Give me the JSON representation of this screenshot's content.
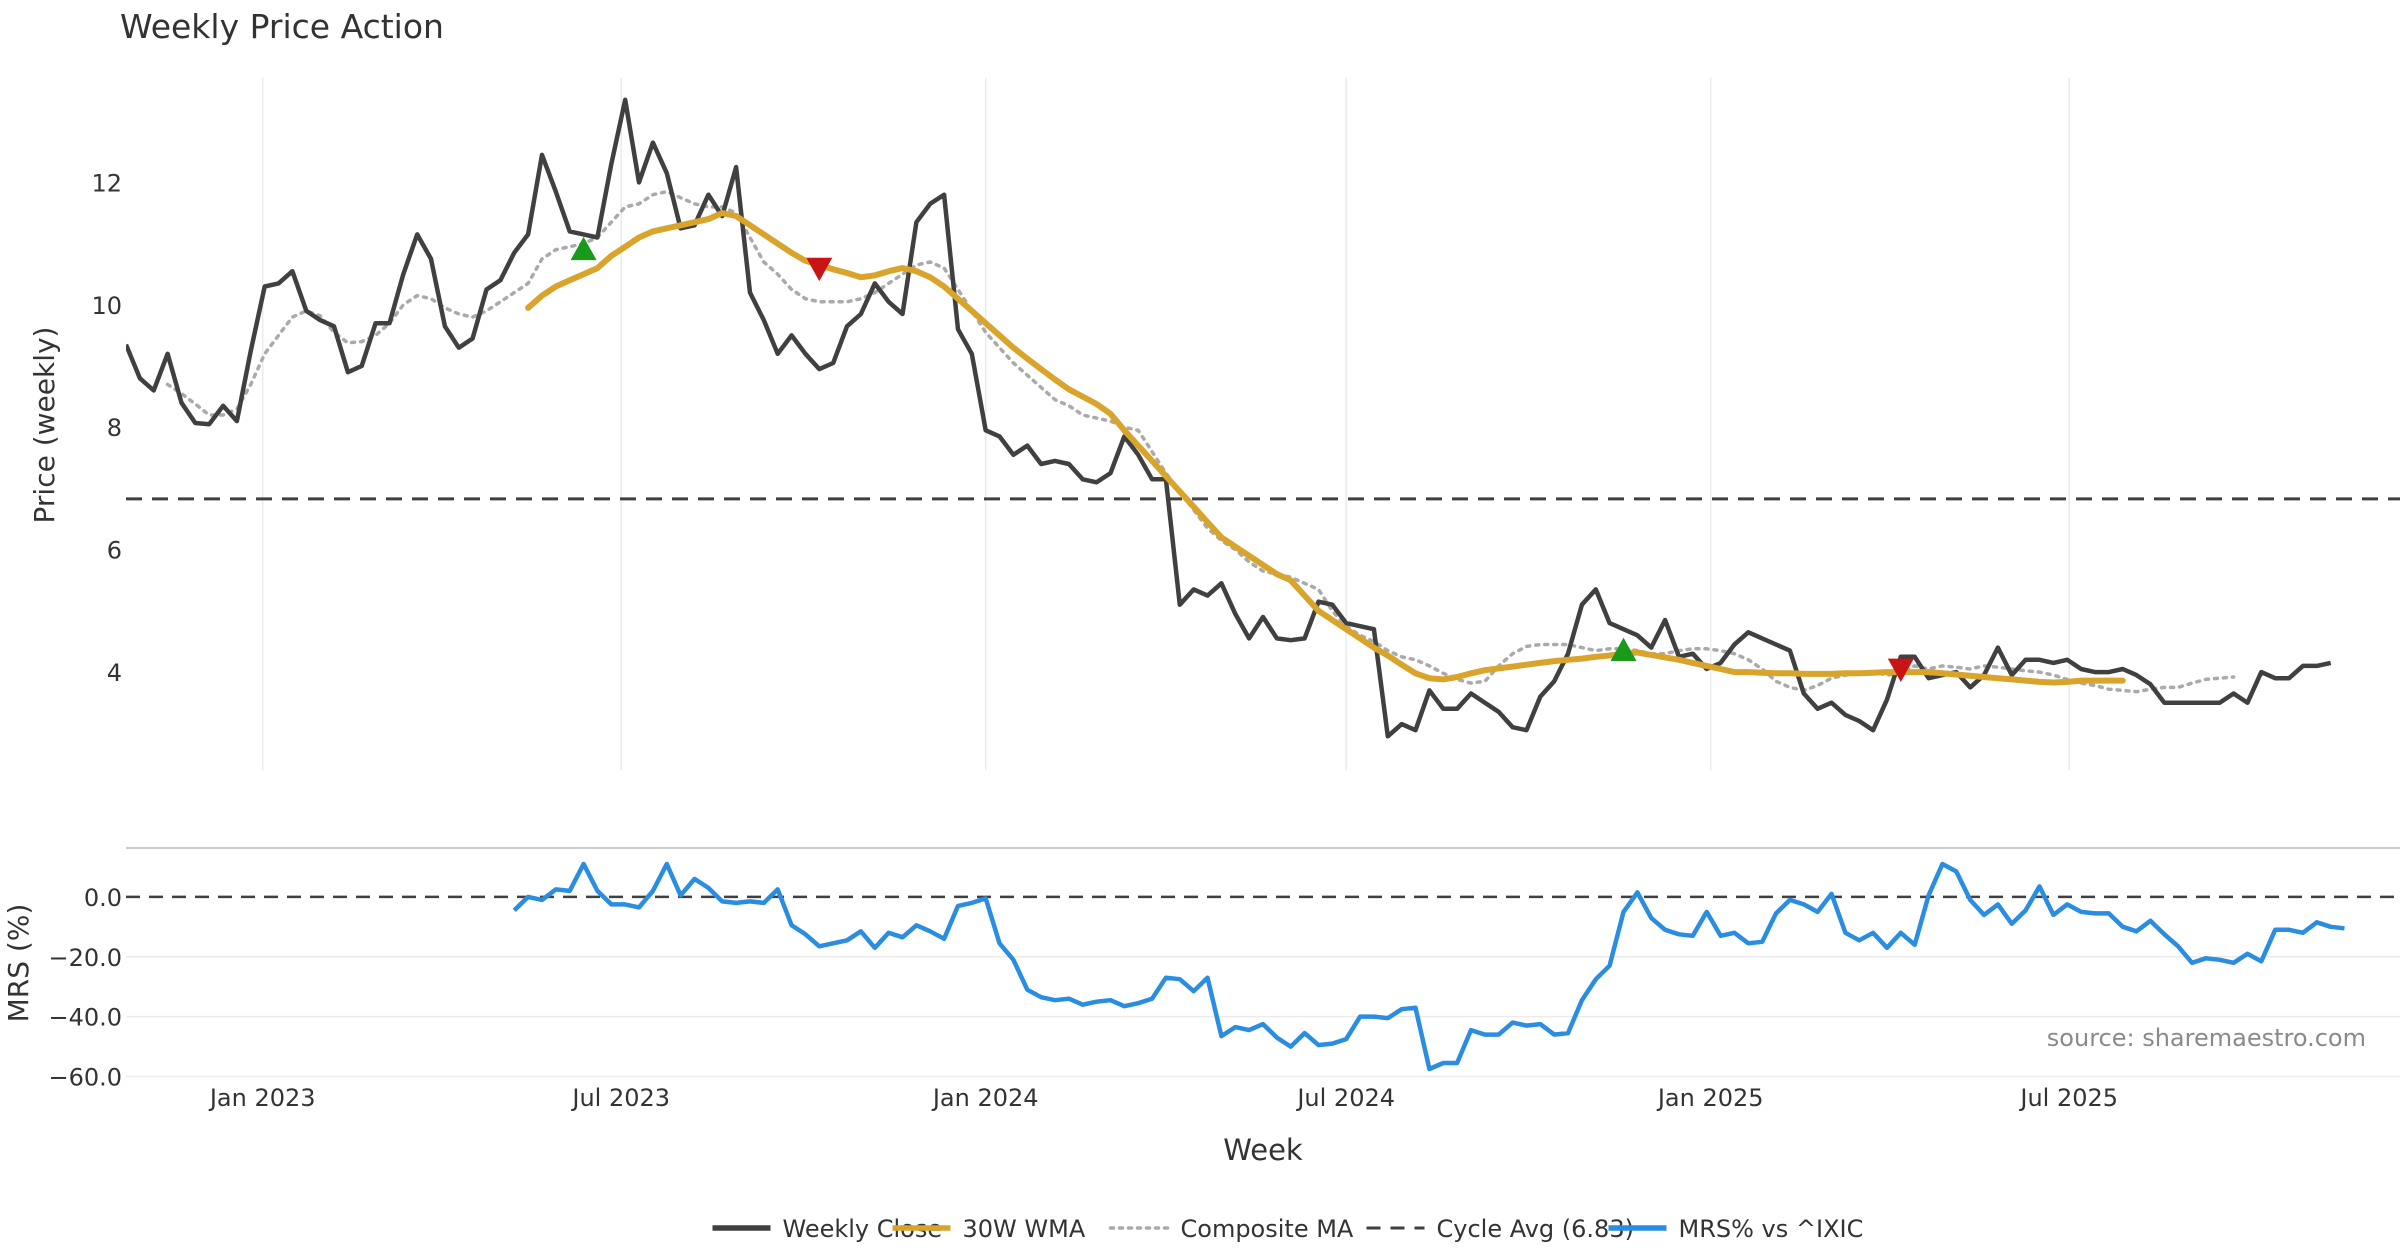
{
  "chart_data": [
    {
      "type": "line",
      "title": "Weekly Price Action",
      "ylabel": "Price (weekly)",
      "xlabel": "",
      "ylim": [
        2.4,
        14.0
      ],
      "yticks": [
        4,
        6,
        8,
        10,
        12
      ],
      "grid": "vertical",
      "x_dates": [
        "2022-10-24",
        "2022-10-31",
        "2022-11-07",
        "2022-11-14",
        "2022-11-21",
        "2022-11-28",
        "2022-12-05",
        "2022-12-12",
        "2022-12-19",
        "2022-12-26",
        "2023-01-02",
        "2023-01-09",
        "2023-01-16",
        "2023-01-23",
        "2023-01-30",
        "2023-02-06",
        "2023-02-13",
        "2023-02-20",
        "2023-02-27",
        "2023-03-06",
        "2023-03-13",
        "2023-03-20",
        "2023-03-27",
        "2023-04-03",
        "2023-04-10",
        "2023-04-17",
        "2023-04-24",
        "2023-05-01",
        "2023-05-08",
        "2023-05-15",
        "2023-05-22",
        "2023-05-29",
        "2023-06-05",
        "2023-06-12",
        "2023-06-19",
        "2023-06-26",
        "2023-07-03",
        "2023-07-10",
        "2023-07-17",
        "2023-07-24",
        "2023-07-31",
        "2023-08-07",
        "2023-08-14",
        "2023-08-21",
        "2023-08-28",
        "2023-09-04",
        "2023-09-11",
        "2023-09-18",
        "2023-09-25",
        "2023-10-02",
        "2023-10-09",
        "2023-10-16",
        "2023-10-23",
        "2023-10-30",
        "2023-11-06",
        "2023-11-13",
        "2023-11-20",
        "2023-11-27",
        "2023-12-04",
        "2023-12-11",
        "2023-12-18",
        "2023-12-25",
        "2024-01-01",
        "2024-01-08",
        "2024-01-15",
        "2024-01-22",
        "2024-01-29",
        "2024-02-05",
        "2024-02-12",
        "2024-02-19",
        "2024-02-26",
        "2024-03-04",
        "2024-03-11",
        "2024-03-18",
        "2024-03-25",
        "2024-04-01",
        "2024-04-08",
        "2024-04-15",
        "2024-04-22",
        "2024-04-29",
        "2024-05-06",
        "2024-05-13",
        "2024-05-20",
        "2024-05-27",
        "2024-06-03",
        "2024-06-10",
        "2024-06-17",
        "2024-06-24",
        "2024-07-01",
        "2024-07-08",
        "2024-07-15",
        "2024-07-22",
        "2024-07-29",
        "2024-08-05",
        "2024-08-12",
        "2024-08-19",
        "2024-08-26",
        "2024-09-02",
        "2024-09-09",
        "2024-09-16",
        "2024-09-23",
        "2024-09-30",
        "2024-10-07",
        "2024-10-14",
        "2024-10-21",
        "2024-10-28",
        "2024-11-04",
        "2024-11-11",
        "2024-11-18",
        "2024-11-25",
        "2024-12-02",
        "2024-12-09",
        "2024-12-16",
        "2024-12-23",
        "2024-12-30",
        "2025-01-06",
        "2025-01-13",
        "2025-01-20",
        "2025-01-27",
        "2025-02-03",
        "2025-02-10",
        "2025-02-17",
        "2025-02-24",
        "2025-03-03",
        "2025-03-10",
        "2025-03-17",
        "2025-03-24",
        "2025-03-31",
        "2025-04-07",
        "2025-04-14",
        "2025-04-21",
        "2025-04-28",
        "2025-05-05",
        "2025-05-12",
        "2025-05-19",
        "2025-05-26",
        "2025-06-02",
        "2025-06-09",
        "2025-06-16",
        "2025-06-23",
        "2025-06-30",
        "2025-07-07",
        "2025-07-14",
        "2025-07-21",
        "2025-07-28",
        "2025-08-04",
        "2025-08-11",
        "2025-08-18",
        "2025-08-25",
        "2025-09-01",
        "2025-09-08",
        "2025-09-15",
        "2025-09-22",
        "2025-09-29",
        "2025-10-06",
        "2025-10-13",
        "2025-10-20",
        "2025-10-27",
        "2025-11-03",
        "2025-11-10",
        "2025-11-17",
        "2025-11-24",
        "2025-12-01",
        "2025-12-08",
        "2025-12-15"
      ],
      "series": [
        {
          "name": "Weekly Close",
          "color": "#404040",
          "style": "solid",
          "values": [
            9.35,
            8.8,
            8.6,
            9.2,
            8.4,
            8.07,
            8.05,
            8.35,
            8.1,
            9.25,
            10.3,
            10.35,
            10.55,
            9.9,
            9.75,
            9.65,
            8.9,
            9.0,
            9.7,
            9.7,
            10.5,
            11.15,
            10.75,
            9.65,
            9.3,
            9.45,
            10.25,
            10.4,
            10.85,
            11.15,
            12.45,
            11.85,
            11.2,
            11.15,
            11.1,
            12.3,
            13.35,
            12.0,
            12.65,
            12.15,
            11.25,
            11.3,
            11.8,
            11.45,
            12.25,
            10.2,
            9.75,
            9.2,
            9.5,
            9.2,
            8.95,
            9.05,
            9.65,
            9.85,
            10.35,
            10.05,
            9.85,
            11.35,
            11.65,
            11.8,
            9.6,
            9.2,
            7.95,
            7.85,
            7.55,
            7.7,
            7.4,
            7.45,
            7.4,
            7.15,
            7.1,
            7.25,
            7.85,
            7.55,
            7.15,
            7.15,
            5.1,
            5.35,
            5.25,
            5.45,
            4.95,
            4.55,
            4.9,
            4.55,
            4.52,
            4.55,
            5.15,
            5.1,
            4.8,
            4.75,
            4.7,
            2.95,
            3.15,
            3.05,
            3.7,
            3.4,
            3.4,
            3.65,
            3.5,
            3.35,
            3.1,
            3.05,
            3.6,
            3.85,
            4.3,
            5.1,
            5.35,
            4.8,
            4.7,
            4.6,
            4.4,
            4.85,
            4.25,
            4.3,
            4.05,
            4.15,
            4.45,
            4.65,
            4.55,
            4.45,
            4.35,
            3.65,
            3.4,
            3.5,
            3.3,
            3.2,
            3.05,
            3.55,
            4.25,
            4.25,
            3.9,
            3.95,
            4.0,
            3.75,
            3.95,
            4.4,
            3.95,
            4.2,
            4.2,
            4.15,
            4.2,
            4.05,
            4.0,
            4.0,
            4.05,
            3.95,
            3.8,
            3.5,
            3.5,
            3.5,
            3.5,
            3.5,
            3.65,
            3.5,
            4.0,
            3.9,
            3.9,
            4.1,
            4.1,
            4.15
          ]
        },
        {
          "name": "30W WMA",
          "color": "#d9a42c",
          "style": "solid",
          "values": [
            null,
            null,
            null,
            null,
            null,
            null,
            null,
            null,
            null,
            null,
            null,
            null,
            null,
            null,
            null,
            null,
            null,
            null,
            null,
            null,
            null,
            null,
            null,
            null,
            null,
            null,
            null,
            null,
            null,
            9.95,
            10.15,
            10.3,
            10.4,
            10.5,
            10.6,
            10.8,
            10.95,
            11.1,
            11.2,
            11.25,
            11.3,
            11.35,
            11.4,
            11.5,
            11.45,
            11.3,
            11.15,
            11.0,
            10.85,
            10.72,
            10.65,
            10.58,
            10.52,
            10.45,
            10.48,
            10.55,
            10.6,
            10.55,
            10.45,
            10.3,
            10.1,
            9.9,
            9.7,
            9.5,
            9.3,
            9.12,
            8.95,
            8.78,
            8.62,
            8.5,
            8.38,
            8.22,
            7.95,
            7.7,
            7.45,
            7.2,
            6.95,
            6.7,
            6.45,
            6.2,
            6.05,
            5.9,
            5.75,
            5.6,
            5.5,
            5.25,
            5.0,
            4.85,
            4.7,
            4.55,
            4.4,
            4.27,
            4.12,
            3.98,
            3.9,
            3.88,
            3.92,
            3.98,
            4.03,
            4.06,
            4.09,
            4.12,
            4.15,
            4.18,
            4.2,
            4.22,
            4.25,
            4.27,
            4.3,
            4.32,
            4.28,
            4.24,
            4.2,
            4.15,
            4.1,
            4.05,
            4.0,
            4.0,
            3.99,
            3.98,
            3.98,
            3.97,
            3.97,
            3.97,
            3.98,
            3.98,
            3.99,
            4.0,
            4.0,
            4.0,
            4.0,
            3.98,
            3.96,
            3.94,
            3.92,
            3.9,
            3.88,
            3.86,
            3.84,
            3.83,
            3.84,
            3.86,
            3.86,
            3.86,
            3.86
          ]
        },
        {
          "name": "Composite MA",
          "color": "#aaaaaa",
          "style": "dotted",
          "values": [
            null,
            null,
            null,
            8.7,
            8.55,
            8.38,
            8.2,
            8.2,
            8.3,
            8.7,
            9.2,
            9.5,
            9.8,
            9.9,
            9.82,
            9.55,
            9.38,
            9.4,
            9.5,
            9.7,
            10.0,
            10.15,
            10.1,
            9.95,
            9.85,
            9.8,
            9.9,
            10.05,
            10.2,
            10.35,
            10.75,
            10.9,
            10.95,
            11.0,
            11.1,
            11.35,
            11.6,
            11.65,
            11.8,
            11.85,
            11.75,
            11.65,
            11.6,
            11.6,
            11.5,
            11.1,
            10.7,
            10.5,
            10.25,
            10.1,
            10.05,
            10.05,
            10.05,
            10.1,
            10.2,
            10.35,
            10.5,
            10.65,
            10.7,
            10.6,
            10.25,
            9.9,
            9.55,
            9.3,
            9.05,
            8.85,
            8.65,
            8.45,
            8.35,
            8.2,
            8.15,
            8.1,
            8.0,
            7.95,
            7.6,
            7.25,
            6.95,
            6.65,
            6.35,
            6.15,
            6.0,
            5.8,
            5.65,
            5.6,
            5.55,
            5.45,
            5.35,
            5.0,
            4.75,
            4.6,
            4.5,
            4.35,
            4.25,
            4.2,
            4.1,
            3.98,
            3.88,
            3.82,
            3.85,
            4.1,
            4.3,
            4.42,
            4.45,
            4.45,
            4.45,
            4.4,
            4.35,
            4.38,
            4.38,
            4.35,
            4.3,
            4.3,
            4.35,
            4.38,
            4.38,
            4.35,
            4.3,
            4.2,
            4.05,
            3.85,
            3.75,
            3.7,
            3.78,
            3.9,
            3.95,
            3.98,
            4.0,
            3.95,
            3.98,
            4.1,
            4.05,
            4.1,
            4.08,
            4.05,
            4.1,
            4.08,
            4.05,
            4.02,
            4.0,
            3.95,
            3.88,
            3.82,
            3.78,
            3.72,
            3.7,
            3.68,
            3.72,
            3.75,
            3.75,
            3.82,
            3.88,
            3.9,
            3.92
          ]
        }
      ],
      "reference_line": {
        "name": "Cycle Avg (6.83)",
        "value": 6.83,
        "color": "#404040",
        "style": "dashed"
      },
      "markers": [
        {
          "type": "buy",
          "date": "2023-06-12",
          "y": 10.9,
          "color": "#1a9a1a",
          "shape": "triangle-up"
        },
        {
          "type": "sell",
          "date": "2023-10-09",
          "y": 10.6,
          "color": "#c81414",
          "shape": "triangle-down"
        },
        {
          "type": "buy",
          "date": "2024-11-18",
          "y": 4.35,
          "color": "#1a9a1a",
          "shape": "triangle-up"
        },
        {
          "type": "sell",
          "date": "2025-04-07",
          "y": 4.05,
          "color": "#c81414",
          "shape": "triangle-down"
        }
      ]
    },
    {
      "type": "line",
      "ylabel": "MRS (%)",
      "xlabel": "Week",
      "ylim": [
        -60.5,
        15
      ],
      "yticks": [
        0.0,
        -20.0,
        -40.0,
        -60.0
      ],
      "ytick_labels": [
        "0.0",
        "−20.0",
        "−40.0",
        "−60.0"
      ],
      "xticks": [
        "2023-01-01",
        "2023-07-01",
        "2024-01-01",
        "2024-07-01",
        "2025-01-01",
        "2025-07-01"
      ],
      "xtick_labels": [
        "Jan 2023",
        "Jul 2023",
        "Jan 2024",
        "Jul 2024",
        "Jan 2025",
        "Jul 2025"
      ],
      "grid": "horizontal",
      "series": [
        {
          "name": "MRS% vs ^IXIC",
          "color": "#2a8de0",
          "style": "solid",
          "start_date": "2023-05-08",
          "values": [
            -4.5,
            0.0,
            -1.0,
            2.5,
            2.0,
            11.0,
            2.0,
            -2.5,
            -2.5,
            -3.5,
            2.0,
            11.0,
            0.5,
            6.0,
            3.0,
            -1.5,
            -2.0,
            -1.5,
            -2.0,
            2.5,
            -9.5,
            -12.5,
            -16.5,
            -15.5,
            -14.5,
            -11.5,
            -17.0,
            -12.0,
            -13.5,
            -9.5,
            -11.5,
            -14.0,
            -3.0,
            -2.0,
            -0.5,
            -15.5,
            -21.0,
            -31.0,
            -33.5,
            -34.5,
            -34.0,
            -36.0,
            -35.0,
            -34.5,
            -36.5,
            -35.5,
            -34.0,
            -27.0,
            -27.5,
            -31.5,
            -27.0,
            -46.5,
            -43.5,
            -44.5,
            -42.5,
            -47.0,
            -50.0,
            -45.5,
            -49.5,
            -49.0,
            -47.5,
            -40.0,
            -40.0,
            -40.5,
            -37.5,
            -37.0,
            -57.5,
            -55.5,
            -55.5,
            -44.5,
            -46.0,
            -46.0,
            -42.0,
            -43.0,
            -42.5,
            -46.0,
            -45.5,
            -34.5,
            -27.5,
            -23.0,
            -5.0,
            1.5,
            -7.0,
            -11.0,
            -12.5,
            -13.0,
            -5.0,
            -13.0,
            -12.0,
            -15.5,
            -15.0,
            -5.5,
            -1.0,
            -2.5,
            -5.0,
            1.0,
            -12.0,
            -14.5,
            -12.0,
            -17.0,
            -12.0,
            -16.0,
            0.5,
            11.0,
            8.5,
            -1.0,
            -6.0,
            -2.5,
            -9.0,
            -4.5,
            3.5,
            -6.0,
            -2.5,
            -5.0,
            -5.5,
            -5.5,
            -10.0,
            -11.5,
            -8.0,
            -12.5,
            -16.5,
            -22.0,
            -20.5,
            -21.0,
            -22.0,
            -19.0,
            -21.5,
            -11.0,
            -11.0,
            -12.0,
            -8.5,
            -10.0,
            -10.5
          ]
        }
      ],
      "reference_line": {
        "value": 0.0,
        "color": "#404040",
        "style": "dashed"
      }
    }
  ],
  "annotation": "source: sharemaestro.com",
  "legend": {
    "placement": "bottom-center",
    "items": [
      {
        "label": "Weekly Close",
        "color": "#404040",
        "style": "solid"
      },
      {
        "label": "30W WMA",
        "color": "#d9a42c",
        "style": "solid"
      },
      {
        "label": "Composite MA",
        "color": "#aaaaaa",
        "style": "dotted"
      },
      {
        "label": "Cycle Avg (6.83)",
        "color": "#404040",
        "style": "dashed"
      },
      {
        "label": "MRS% vs ^IXIC",
        "color": "#2a8de0",
        "style": "solid"
      }
    ]
  }
}
